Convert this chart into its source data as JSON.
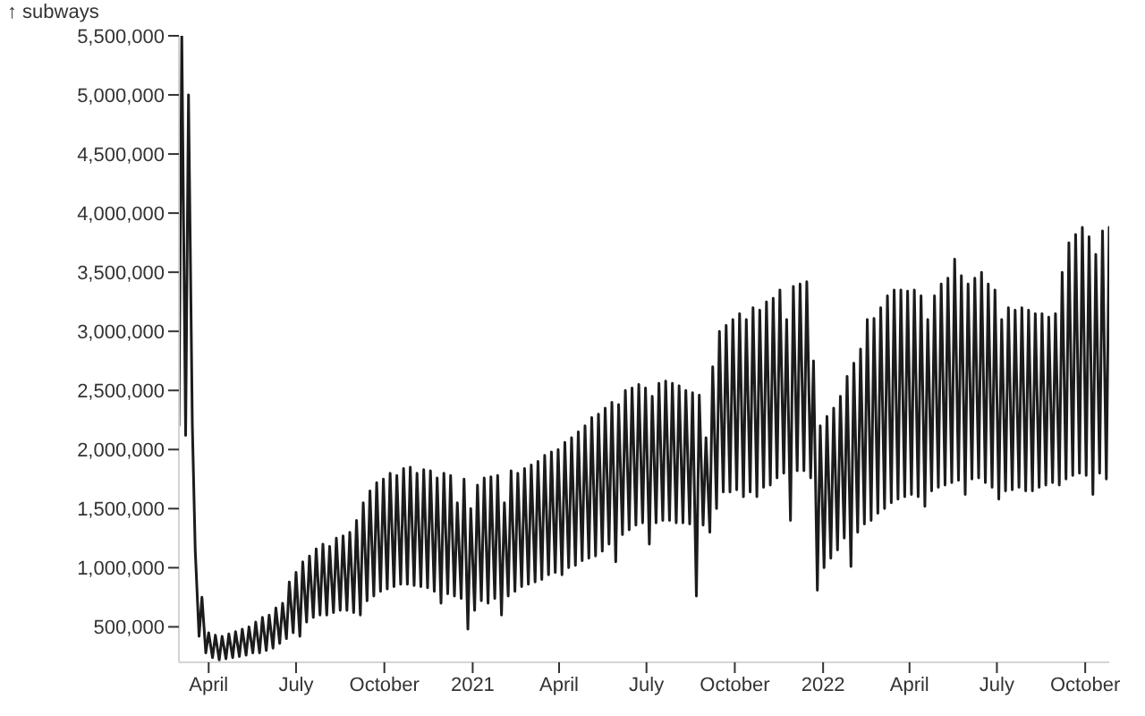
{
  "chart_data": {
    "type": "line",
    "ylabel": "↑ subways",
    "color": "#1c1c1c",
    "x": [
      "2020-03-01",
      "2020-03-04",
      "2020-03-08",
      "2020-03-11",
      "2020-03-15",
      "2020-03-18",
      "2020-03-22",
      "2020-03-25",
      "2020-03-29",
      "2020-04-01",
      "2020-04-05",
      "2020-04-08",
      "2020-04-12",
      "2020-04-15",
      "2020-04-19",
      "2020-04-22",
      "2020-04-26",
      "2020-04-29",
      "2020-05-03",
      "2020-05-06",
      "2020-05-10",
      "2020-05-13",
      "2020-05-17",
      "2020-05-20",
      "2020-05-24",
      "2020-05-27",
      "2020-05-31",
      "2020-06-03",
      "2020-06-07",
      "2020-06-10",
      "2020-06-14",
      "2020-06-17",
      "2020-06-21",
      "2020-06-24",
      "2020-06-28",
      "2020-07-01",
      "2020-07-05",
      "2020-07-08",
      "2020-07-12",
      "2020-07-15",
      "2020-07-19",
      "2020-07-22",
      "2020-07-26",
      "2020-07-29",
      "2020-08-02",
      "2020-08-05",
      "2020-08-09",
      "2020-08-12",
      "2020-08-16",
      "2020-08-19",
      "2020-08-23",
      "2020-08-26",
      "2020-08-30",
      "2020-09-02",
      "2020-09-06",
      "2020-09-09",
      "2020-09-13",
      "2020-09-16",
      "2020-09-20",
      "2020-09-23",
      "2020-09-27",
      "2020-09-30",
      "2020-10-04",
      "2020-10-07",
      "2020-10-11",
      "2020-10-14",
      "2020-10-18",
      "2020-10-21",
      "2020-10-25",
      "2020-10-28",
      "2020-11-01",
      "2020-11-04",
      "2020-11-08",
      "2020-11-11",
      "2020-11-15",
      "2020-11-18",
      "2020-11-22",
      "2020-11-25",
      "2020-11-29",
      "2020-12-02",
      "2020-12-06",
      "2020-12-09",
      "2020-12-13",
      "2020-12-16",
      "2020-12-20",
      "2020-12-23",
      "2020-12-27",
      "2020-12-30",
      "2021-01-03",
      "2021-01-06",
      "2021-01-10",
      "2021-01-13",
      "2021-01-17",
      "2021-01-20",
      "2021-01-24",
      "2021-01-27",
      "2021-01-31",
      "2021-02-03",
      "2021-02-07",
      "2021-02-10",
      "2021-02-14",
      "2021-02-17",
      "2021-02-21",
      "2021-02-24",
      "2021-02-28",
      "2021-03-03",
      "2021-03-07",
      "2021-03-10",
      "2021-03-14",
      "2021-03-17",
      "2021-03-21",
      "2021-03-24",
      "2021-03-28",
      "2021-03-31",
      "2021-04-04",
      "2021-04-07",
      "2021-04-11",
      "2021-04-14",
      "2021-04-18",
      "2021-04-21",
      "2021-04-25",
      "2021-04-28",
      "2021-05-02",
      "2021-05-05",
      "2021-05-09",
      "2021-05-12",
      "2021-05-16",
      "2021-05-19",
      "2021-05-23",
      "2021-05-26",
      "2021-05-30",
      "2021-06-02",
      "2021-06-06",
      "2021-06-09",
      "2021-06-13",
      "2021-06-16",
      "2021-06-20",
      "2021-06-23",
      "2021-06-27",
      "2021-06-30",
      "2021-07-04",
      "2021-07-07",
      "2021-07-11",
      "2021-07-14",
      "2021-07-18",
      "2021-07-21",
      "2021-07-25",
      "2021-07-28",
      "2021-08-01",
      "2021-08-04",
      "2021-08-08",
      "2021-08-11",
      "2021-08-15",
      "2021-08-18",
      "2021-08-22",
      "2021-08-25",
      "2021-08-29",
      "2021-09-01",
      "2021-09-05",
      "2021-09-08",
      "2021-09-12",
      "2021-09-15",
      "2021-09-19",
      "2021-09-22",
      "2021-09-26",
      "2021-09-29",
      "2021-10-03",
      "2021-10-06",
      "2021-10-10",
      "2021-10-13",
      "2021-10-17",
      "2021-10-20",
      "2021-10-24",
      "2021-10-27",
      "2021-10-31",
      "2021-11-03",
      "2021-11-07",
      "2021-11-10",
      "2021-11-14",
      "2021-11-17",
      "2021-11-21",
      "2021-11-24",
      "2021-11-28",
      "2021-12-01",
      "2021-12-05",
      "2021-12-08",
      "2021-12-12",
      "2021-12-15",
      "2021-12-19",
      "2021-12-22",
      "2021-12-26",
      "2021-12-29",
      "2022-01-02",
      "2022-01-05",
      "2022-01-09",
      "2022-01-12",
      "2022-01-16",
      "2022-01-19",
      "2022-01-23",
      "2022-01-26",
      "2022-01-30",
      "2022-02-02",
      "2022-02-06",
      "2022-02-09",
      "2022-02-13",
      "2022-02-16",
      "2022-02-20",
      "2022-02-23",
      "2022-02-27",
      "2022-03-02",
      "2022-03-06",
      "2022-03-09",
      "2022-03-13",
      "2022-03-16",
      "2022-03-20",
      "2022-03-23",
      "2022-03-27",
      "2022-03-30",
      "2022-04-03",
      "2022-04-06",
      "2022-04-10",
      "2022-04-13",
      "2022-04-17",
      "2022-04-20",
      "2022-04-24",
      "2022-04-27",
      "2022-05-01",
      "2022-05-04",
      "2022-05-08",
      "2022-05-11",
      "2022-05-15",
      "2022-05-18",
      "2022-05-22",
      "2022-05-25",
      "2022-05-29",
      "2022-06-01",
      "2022-06-05",
      "2022-06-08",
      "2022-06-12",
      "2022-06-15",
      "2022-06-19",
      "2022-06-22",
      "2022-06-26",
      "2022-06-29",
      "2022-07-03",
      "2022-07-06",
      "2022-07-10",
      "2022-07-13",
      "2022-07-17",
      "2022-07-20",
      "2022-07-24",
      "2022-07-27",
      "2022-07-31",
      "2022-08-03",
      "2022-08-07",
      "2022-08-10",
      "2022-08-14",
      "2022-08-17",
      "2022-08-21",
      "2022-08-24",
      "2022-08-28",
      "2022-08-31",
      "2022-09-04",
      "2022-09-07",
      "2022-09-11",
      "2022-09-14",
      "2022-09-18",
      "2022-09-21",
      "2022-09-25",
      "2022-09-28",
      "2022-10-02",
      "2022-10-05",
      "2022-10-09",
      "2022-10-12",
      "2022-10-16",
      "2022-10-19",
      "2022-10-23",
      "2022-10-26"
    ],
    "values": [
      2200000,
      5500000,
      2120000,
      5000000,
      2200000,
      1150000,
      420000,
      750000,
      280000,
      450000,
      240000,
      430000,
      220000,
      420000,
      230000,
      440000,
      240000,
      460000,
      250000,
      480000,
      260000,
      500000,
      280000,
      540000,
      280000,
      580000,
      300000,
      600000,
      320000,
      660000,
      360000,
      700000,
      400000,
      880000,
      450000,
      960000,
      420000,
      1050000,
      540000,
      1100000,
      580000,
      1160000,
      600000,
      1200000,
      600000,
      1180000,
      620000,
      1250000,
      640000,
      1270000,
      640000,
      1300000,
      620000,
      1400000,
      600000,
      1550000,
      720000,
      1650000,
      760000,
      1720000,
      800000,
      1750000,
      820000,
      1800000,
      840000,
      1780000,
      860000,
      1840000,
      860000,
      1850000,
      850000,
      1800000,
      840000,
      1830000,
      830000,
      1820000,
      800000,
      1760000,
      700000,
      1800000,
      780000,
      1780000,
      760000,
      1550000,
      740000,
      1750000,
      480000,
      1500000,
      640000,
      1700000,
      720000,
      1760000,
      700000,
      1770000,
      740000,
      1780000,
      600000,
      1550000,
      760000,
      1820000,
      800000,
      1800000,
      840000,
      1840000,
      860000,
      1870000,
      880000,
      1900000,
      900000,
      1950000,
      940000,
      1980000,
      960000,
      2000000,
      940000,
      2060000,
      1000000,
      2100000,
      1020000,
      2150000,
      1060000,
      2200000,
      1080000,
      2270000,
      1100000,
      2300000,
      1140000,
      2350000,
      1200000,
      2400000,
      1050000,
      2380000,
      1280000,
      2500000,
      1320000,
      2520000,
      1360000,
      2550000,
      1380000,
      2520000,
      1200000,
      2450000,
      1380000,
      2560000,
      1400000,
      2580000,
      1400000,
      2560000,
      1380000,
      2540000,
      1380000,
      2500000,
      1370000,
      2480000,
      760000,
      2460000,
      1360000,
      2100000,
      1300000,
      2700000,
      1500000,
      3000000,
      1640000,
      3050000,
      1640000,
      3100000,
      1660000,
      3150000,
      1600000,
      3100000,
      1640000,
      3200000,
      1600000,
      3180000,
      1680000,
      3250000,
      1700000,
      3280000,
      1760000,
      3350000,
      1800000,
      3100000,
      1400000,
      3380000,
      1820000,
      3400000,
      1820000,
      3420000,
      1760000,
      2750000,
      810000,
      2200000,
      1000000,
      2280000,
      1080000,
      2350000,
      1150000,
      2450000,
      1250000,
      2620000,
      1010000,
      2730000,
      1300000,
      2850000,
      1370000,
      3100000,
      1400000,
      3110000,
      1460000,
      3200000,
      1500000,
      3300000,
      1550000,
      3350000,
      1580000,
      3350000,
      1600000,
      3340000,
      1620000,
      3350000,
      1600000,
      3300000,
      1520000,
      3100000,
      1650000,
      3300000,
      1680000,
      3400000,
      1700000,
      3450000,
      1720000,
      3610000,
      1740000,
      3470000,
      1620000,
      3400000,
      1750000,
      3450000,
      1760000,
      3500000,
      1720000,
      3400000,
      1680000,
      3350000,
      1580000,
      3100000,
      1650000,
      3200000,
      1660000,
      3180000,
      1680000,
      3200000,
      1650000,
      3180000,
      1650000,
      3150000,
      1680000,
      3150000,
      1700000,
      3120000,
      1720000,
      3150000,
      1700000,
      3500000,
      1750000,
      3750000,
      1780000,
      3820000,
      1800000,
      3880000,
      1780000,
      3800000,
      1620000,
      3650000,
      1800000,
      3850000,
      1750000,
      3880000
    ],
    "xlim": [
      "2020-03-01",
      "2022-10-26"
    ],
    "xticks": [
      {
        "value": "2020-04-01",
        "label": "April"
      },
      {
        "value": "2020-07-01",
        "label": "July"
      },
      {
        "value": "2020-10-01",
        "label": "October"
      },
      {
        "value": "2021-01-01",
        "label": "2021"
      },
      {
        "value": "2021-04-01",
        "label": "April"
      },
      {
        "value": "2021-07-01",
        "label": "July"
      },
      {
        "value": "2021-10-01",
        "label": "October"
      },
      {
        "value": "2022-01-01",
        "label": "2022"
      },
      {
        "value": "2022-04-01",
        "label": "April"
      },
      {
        "value": "2022-07-01",
        "label": "July"
      },
      {
        "value": "2022-10-01",
        "label": "October"
      }
    ],
    "ylim": [
      200000,
      5500000
    ],
    "yticks": [
      {
        "value": 500000,
        "label": "500,000"
      },
      {
        "value": 1000000,
        "label": "1,000,000"
      },
      {
        "value": 1500000,
        "label": "1,500,000"
      },
      {
        "value": 2000000,
        "label": "2,000,000"
      },
      {
        "value": 2500000,
        "label": "2,500,000"
      },
      {
        "value": 3000000,
        "label": "3,000,000"
      },
      {
        "value": 3500000,
        "label": "3,500,000"
      },
      {
        "value": 4000000,
        "label": "4,000,000"
      },
      {
        "value": 4500000,
        "label": "4,500,000"
      },
      {
        "value": 5000000,
        "label": "5,000,000"
      },
      {
        "value": 5500000,
        "label": "5,500,000"
      }
    ]
  }
}
